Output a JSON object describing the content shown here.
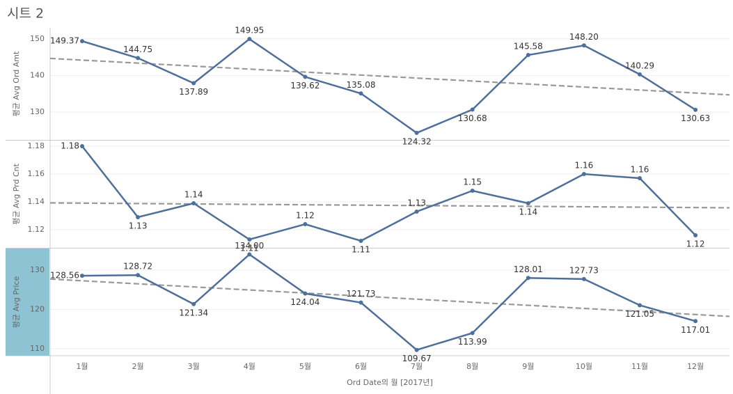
{
  "chart_data": {
    "type": "line",
    "title": "시트 2",
    "x_label": "Ord Date의 월 [2017년]",
    "categories": [
      "1월",
      "2월",
      "3월",
      "4월",
      "5월",
      "6월",
      "7월",
      "8월",
      "9월",
      "10월",
      "11월",
      "12월"
    ],
    "color": "#4e6f9a",
    "trend_line": true,
    "grid": true,
    "panels": [
      {
        "y_label": "평균 Avg Ord Amt",
        "ylim": [
          122.4,
          153
        ],
        "yticks": [
          130,
          140,
          150
        ],
        "highlight": false,
        "values": [
          149.37,
          144.75,
          137.89,
          149.95,
          139.62,
          135.08,
          124.32,
          130.68,
          145.58,
          148.2,
          140.29,
          130.63
        ],
        "value_labels": [
          "149.37",
          "144.75",
          "137.89",
          "149.95",
          "139.62",
          "135.08",
          "124.32",
          "130.68",
          "145.58",
          "148.20",
          "140.29",
          "130.63"
        ]
      },
      {
        "y_label": "평균 Avg Prd Cnt",
        "ylim": [
          1.107,
          1.184
        ],
        "yticks": [
          1.12,
          1.14,
          1.16,
          1.18
        ],
        "highlight": false,
        "values": [
          1.18,
          1.129,
          1.139,
          1.113,
          1.124,
          1.112,
          1.133,
          1.148,
          1.139,
          1.16,
          1.157,
          1.116
        ],
        "value_labels": [
          "1.18",
          "1.13",
          "1.14",
          "1.11",
          "1.12",
          "1.11",
          "1.13",
          "1.15",
          "1.14",
          "1.16",
          "1.16",
          "1.12"
        ]
      },
      {
        "y_label": "평균 Avg Price",
        "ylim": [
          108.2,
          135.5
        ],
        "yticks": [
          110,
          120,
          130
        ],
        "highlight": true,
        "values": [
          128.56,
          128.72,
          121.34,
          134,
          124.04,
          121.73,
          109.67,
          113.99,
          128.01,
          127.73,
          121.05,
          117.01
        ],
        "value_labels": [
          "128.56",
          "128.72",
          "121.34",
          "134.00",
          "124.04",
          "121.73",
          "109.67",
          "113.99",
          "128.01",
          "127.73",
          "121.05",
          "117.01"
        ]
      }
    ]
  }
}
